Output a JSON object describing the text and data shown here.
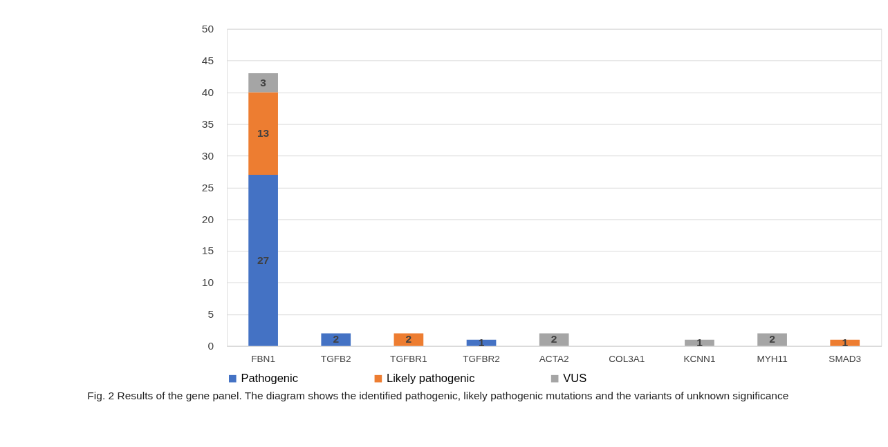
{
  "chart_data": {
    "type": "bar",
    "stacked": true,
    "categories": [
      "FBN1",
      "TGFB2",
      "TGFBR1",
      "TGFBR2",
      "ACTA2",
      "COL3A1",
      "KCNN1",
      "MYH11",
      "SMAD3"
    ],
    "series": [
      {
        "name": "Pathogenic",
        "color": "#4472c4",
        "values": [
          27,
          2,
          null,
          1,
          null,
          null,
          null,
          null,
          null
        ]
      },
      {
        "name": "Likely pathogenic",
        "color": "#ed7d31",
        "values": [
          13,
          null,
          2,
          null,
          null,
          null,
          null,
          null,
          1
        ]
      },
      {
        "name": "VUS",
        "color": "#a5a5a5",
        "values": [
          3,
          null,
          null,
          null,
          2,
          null,
          1,
          2,
          null
        ]
      }
    ],
    "ylim": [
      0,
      50
    ],
    "yticks": [
      0,
      5,
      10,
      15,
      20,
      25,
      30,
      35,
      40,
      45,
      50
    ],
    "grid": "y",
    "legend": "bottom",
    "data_labels": true,
    "annotations": [
      "Fig. 2 Results of the gene panel. The diagram shows the identified pathogenic, likely pathogenic mutations and the variants of unknown significance"
    ]
  }
}
